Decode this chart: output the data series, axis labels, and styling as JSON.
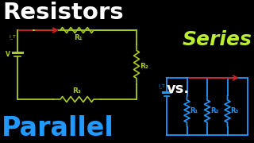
{
  "bg_color": "#000000",
  "title_text": "Resistors",
  "title_color": "#ffffff",
  "series_text": "Series",
  "series_color": "#bbee33",
  "vs_text": "vs.",
  "vs_color": "#ffffff",
  "parallel_text": "Parallel",
  "parallel_color": "#2299ff",
  "series_circuit_color": "#aacc22",
  "parallel_circuit_color": "#2299ff",
  "arrow_color": "#cc2222",
  "label_color": "#aacc22",
  "parallel_label_color": "#2299ff",
  "title_fontsize": 21,
  "series_fontsize": 18,
  "parallel_fontsize": 24,
  "vs_fontsize": 13
}
